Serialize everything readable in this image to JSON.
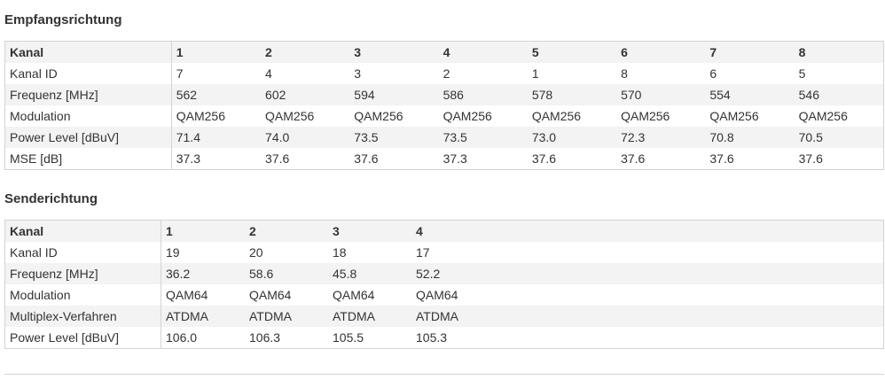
{
  "sections": [
    {
      "title": "Empfangsrichtung",
      "header": [
        "Kanal",
        "1",
        "2",
        "3",
        "4",
        "5",
        "6",
        "7",
        "8"
      ],
      "rows": [
        [
          "Kanal ID",
          "7",
          "4",
          "3",
          "2",
          "1",
          "8",
          "6",
          "5"
        ],
        [
          "Frequenz [MHz]",
          "562",
          "602",
          "594",
          "586",
          "578",
          "570",
          "554",
          "546"
        ],
        [
          "Modulation",
          "QAM256",
          "QAM256",
          "QAM256",
          "QAM256",
          "QAM256",
          "QAM256",
          "QAM256",
          "QAM256"
        ],
        [
          "Power Level [dBuV]",
          "71.4",
          "74.0",
          "73.5",
          "73.5",
          "73.0",
          "72.3",
          "70.8",
          "70.5"
        ],
        [
          "MSE [dB]",
          "37.3",
          "37.6",
          "37.6",
          "37.3",
          "37.6",
          "37.6",
          "37.6",
          "37.6"
        ]
      ]
    },
    {
      "title": "Senderichtung",
      "header": [
        "Kanal",
        "1",
        "2",
        "3",
        "4"
      ],
      "rows": [
        [
          "Kanal ID",
          "19",
          "20",
          "18",
          "17"
        ],
        [
          "Frequenz [MHz]",
          "36.2",
          "58.6",
          "45.8",
          "52.2"
        ],
        [
          "Modulation",
          "QAM64",
          "QAM64",
          "QAM64",
          "QAM64"
        ],
        [
          "Multiplex-Verfahren",
          "ATDMA",
          "ATDMA",
          "ATDMA",
          "ATDMA"
        ],
        [
          "Power Level [dBuV]",
          "106.0",
          "106.3",
          "105.5",
          "105.3"
        ]
      ]
    }
  ]
}
